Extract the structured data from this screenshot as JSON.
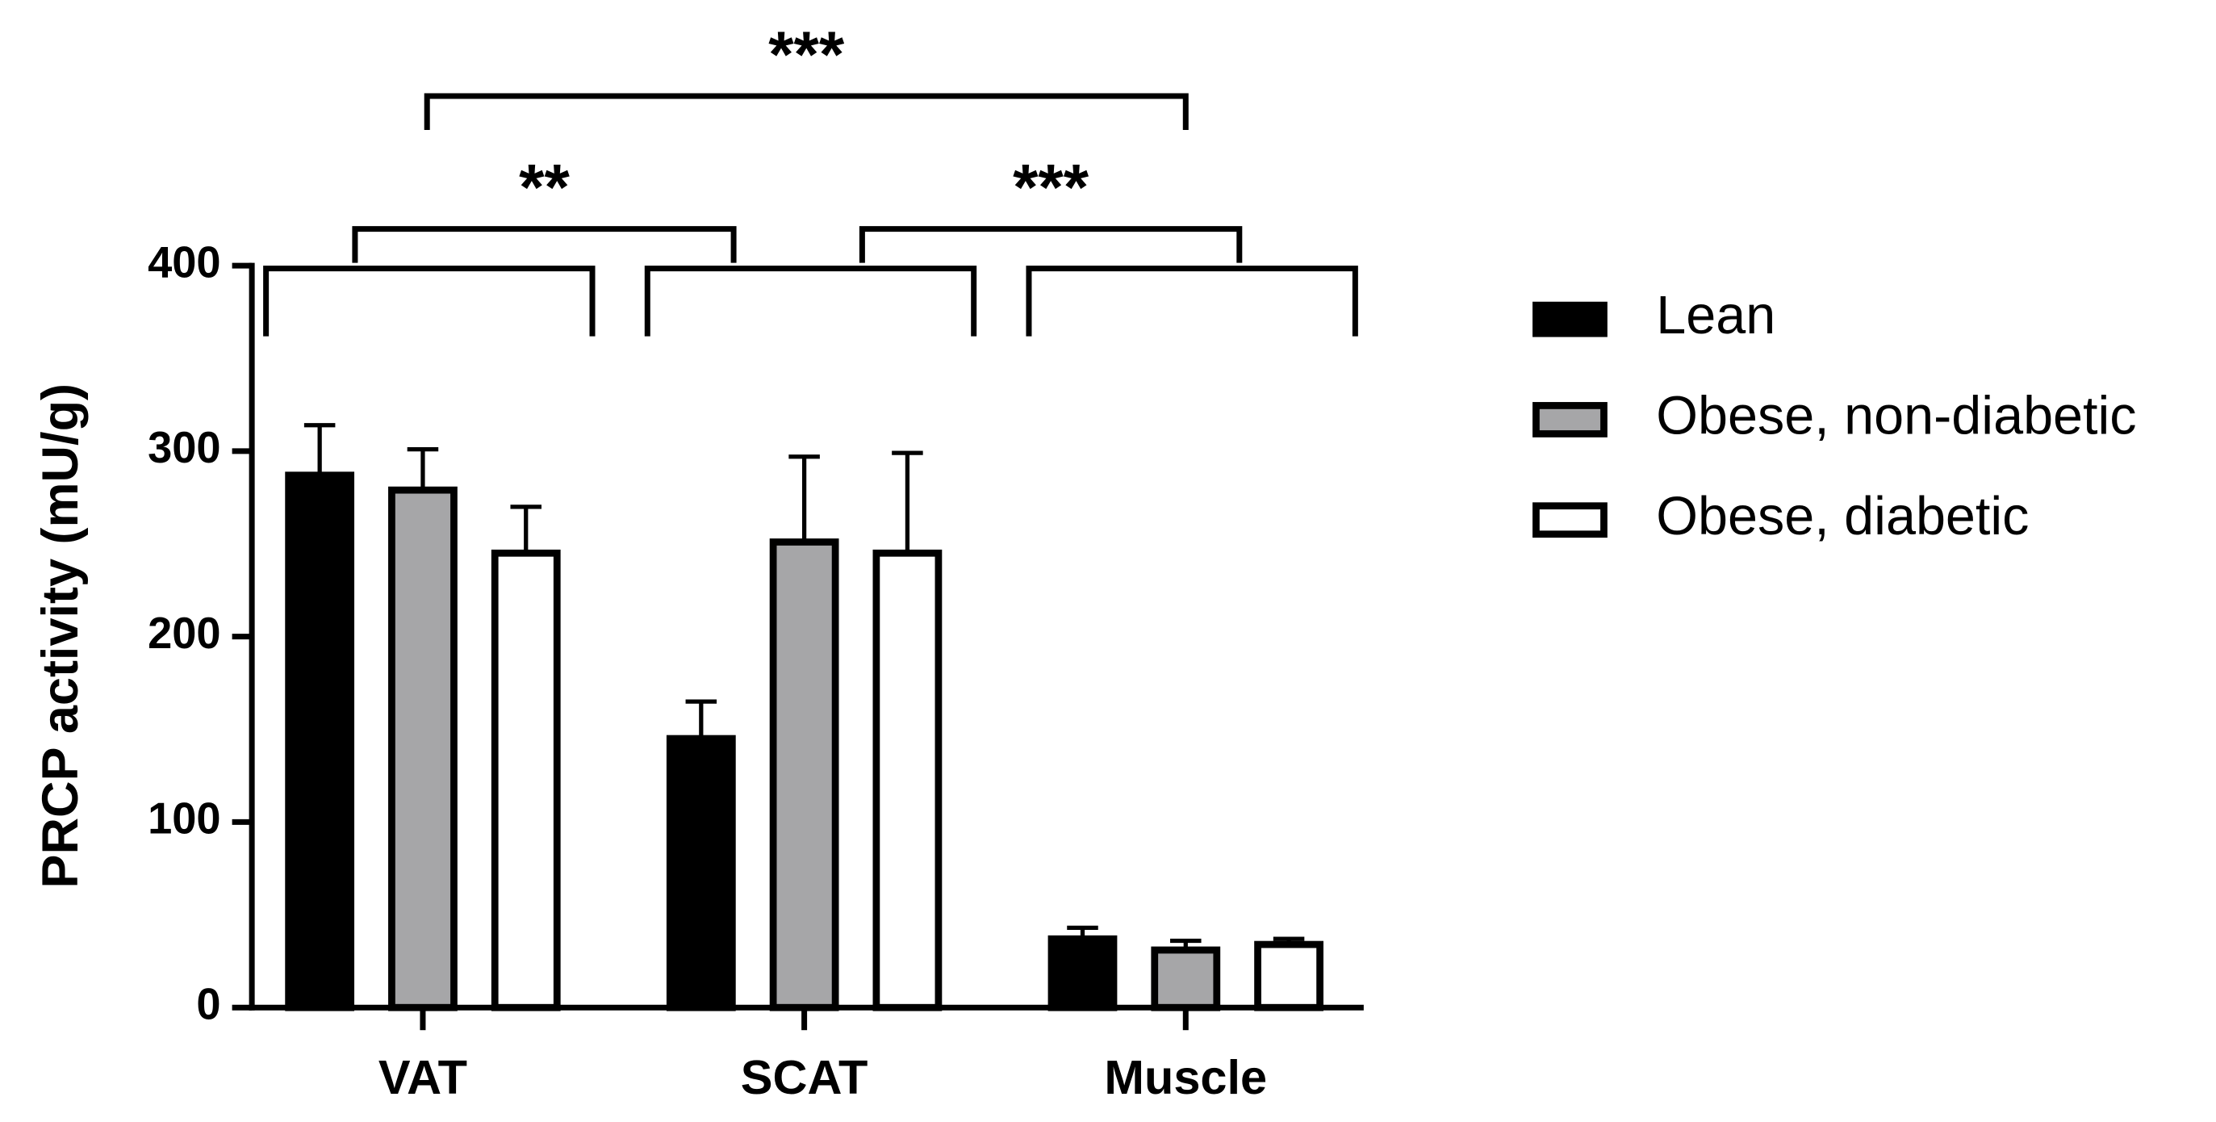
{
  "chart_data": {
    "type": "bar",
    "y_label": "PRCP activity (mU/g)",
    "categories": [
      "VAT",
      "SCAT",
      "Muscle"
    ],
    "series": [
      {
        "name": "Lean",
        "color": "#000000",
        "values": [
          287,
          145,
          37
        ],
        "errors": [
          27,
          20,
          6
        ]
      },
      {
        "name": "Obese, non-diabetic",
        "color": "#a6a6a8",
        "values": [
          279,
          251,
          31
        ],
        "errors": [
          22,
          46,
          5
        ]
      },
      {
        "name": "Obese, diabetic",
        "color": "#ffffff",
        "values": [
          245,
          245,
          34
        ],
        "errors": [
          25,
          54,
          3
        ]
      }
    ],
    "ylim": [
      0,
      400
    ],
    "yticks": [
      0,
      100,
      200,
      300,
      400
    ],
    "annotations": [
      {
        "text": "**",
        "from": "VAT",
        "to": "SCAT"
      },
      {
        "text": "***",
        "from": "VAT",
        "to": "Muscle"
      },
      {
        "text": "***",
        "from": "SCAT",
        "to": "Muscle"
      }
    ]
  }
}
